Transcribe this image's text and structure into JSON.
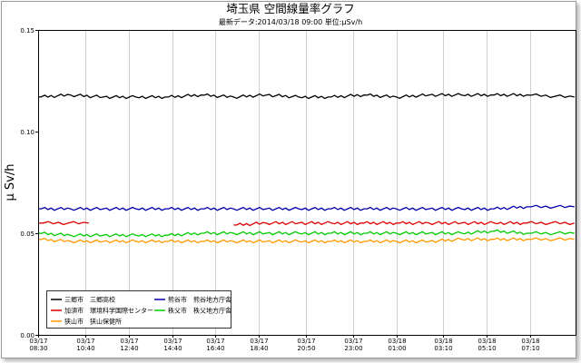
{
  "chart_data": {
    "type": "line",
    "title": "埼玉県 空間線量率グラフ",
    "subtitle": "最新データ:2014/03/18 09:00  単位:μSv/h",
    "ylabel": "μ Sv/h",
    "xlabel": "",
    "ylim": [
      0.0,
      0.15
    ],
    "y_ticks": [
      "0.00",
      "0.05",
      "0.10",
      "0.15"
    ],
    "x_range": [
      0,
      24.75
    ],
    "x_ticks": [
      {
        "x": 0.0,
        "date": "03/17",
        "time": "08:30"
      },
      {
        "x": 2.167,
        "date": "03/17",
        "time": "10:40"
      },
      {
        "x": 4.167,
        "date": "03/17",
        "time": "12:40"
      },
      {
        "x": 6.167,
        "date": "03/17",
        "time": "14:40"
      },
      {
        "x": 8.167,
        "date": "03/17",
        "time": "16:40"
      },
      {
        "x": 10.167,
        "date": "03/17",
        "time": "18:40"
      },
      {
        "x": 12.333,
        "date": "03/17",
        "time": "20:50"
      },
      {
        "x": 14.5,
        "date": "03/17",
        "time": "23:00"
      },
      {
        "x": 16.5,
        "date": "03/18",
        "time": "01:00"
      },
      {
        "x": 18.667,
        "date": "03/18",
        "time": "03:10"
      },
      {
        "x": 20.667,
        "date": "03/18",
        "time": "05:10"
      },
      {
        "x": 22.667,
        "date": "03/18",
        "time": "07:10"
      }
    ],
    "grid": "vertical",
    "legend_position": "bottom-left",
    "series": [
      {
        "name": "三郷市　三郷高校",
        "color": "#000000",
        "x": [
          0,
          1.5,
          3,
          4.5,
          6,
          7.5,
          9,
          10.5,
          12,
          13.5,
          15,
          16.5,
          18,
          19.5,
          21,
          22.5,
          24.7
        ],
        "values": [
          0.117,
          0.118,
          0.117,
          0.117,
          0.117,
          0.118,
          0.117,
          0.118,
          0.117,
          0.117,
          0.118,
          0.117,
          0.118,
          0.118,
          0.118,
          0.118,
          0.117
        ]
      },
      {
        "name": "熊谷市　熊谷地方庁舎",
        "color": "#0000aa",
        "x": [
          0,
          1.5,
          3,
          4.5,
          6,
          7.5,
          9,
          10.5,
          12,
          13.5,
          15,
          16.5,
          18,
          19.5,
          21,
          22.5,
          24.7
        ],
        "values": [
          0.062,
          0.062,
          0.062,
          0.062,
          0.062,
          0.062,
          0.062,
          0.062,
          0.062,
          0.062,
          0.062,
          0.062,
          0.062,
          0.062,
          0.062,
          0.063,
          0.063
        ]
      },
      {
        "name": "加須市　環境科学国際センター",
        "color": "#dd0000",
        "x": [
          0,
          2.33,
          null,
          9.0,
          10.5,
          12,
          13.5,
          15,
          16.5,
          18,
          19.5,
          21,
          22.5,
          24.7
        ],
        "values": [
          0.055,
          0.055,
          null,
          0.054,
          0.055,
          0.055,
          0.055,
          0.055,
          0.055,
          0.055,
          0.055,
          0.055,
          0.055,
          0.055
        ]
      },
      {
        "name": "秩父市　秩父地方庁舎",
        "color": "#00cc00",
        "x": [
          0,
          1.5,
          3,
          4.5,
          6,
          7.5,
          9,
          10.5,
          12,
          13.5,
          15,
          16.5,
          18,
          19.5,
          21,
          22.5,
          24.7
        ],
        "values": [
          0.05,
          0.049,
          0.049,
          0.049,
          0.049,
          0.05,
          0.05,
          0.05,
          0.05,
          0.05,
          0.05,
          0.05,
          0.05,
          0.05,
          0.051,
          0.05,
          0.05
        ]
      },
      {
        "name": "狭山市　狭山保健所",
        "color": "#ff9900",
        "x": [
          0,
          1.5,
          3,
          4.5,
          6,
          7.5,
          9,
          10.5,
          12,
          13.5,
          15,
          16.5,
          18,
          19.5,
          21,
          22.5,
          24.7
        ],
        "values": [
          0.047,
          0.046,
          0.046,
          0.046,
          0.046,
          0.046,
          0.046,
          0.046,
          0.046,
          0.046,
          0.046,
          0.046,
          0.046,
          0.047,
          0.047,
          0.047,
          0.047
        ]
      }
    ]
  }
}
